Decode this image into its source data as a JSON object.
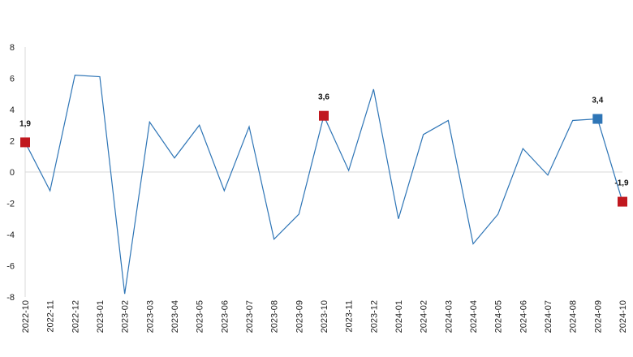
{
  "chart_data": {
    "type": "line",
    "title": "",
    "xlabel": "",
    "ylabel": "",
    "ylim": [
      -8,
      8
    ],
    "yticks": [
      8,
      6,
      4,
      2,
      0,
      -2,
      -4,
      -6,
      -8
    ],
    "grid": false,
    "categories": [
      "2022-10",
      "2022-11",
      "2022-12",
      "2023-01",
      "2023-02",
      "2023-03",
      "2023-04",
      "2023-05",
      "2023-06",
      "2023-07",
      "2023-08",
      "2023-09",
      "2023-10",
      "2023-11",
      "2023-12",
      "2024-01",
      "2024-02",
      "2024-03",
      "2024-04",
      "2024-05",
      "2024-06",
      "2024-07",
      "2024-08",
      "2024-09",
      "2024-10"
    ],
    "series": [
      {
        "color": "#2e75b6",
        "values": [
          1.9,
          -1.2,
          6.2,
          6.1,
          -7.8,
          3.2,
          0.9,
          3.0,
          -1.2,
          2.9,
          -4.3,
          -2.7,
          3.6,
          0.1,
          5.3,
          -3.0,
          2.4,
          3.3,
          -4.6,
          -2.7,
          1.5,
          -0.2,
          3.3,
          3.4,
          -1.9
        ]
      }
    ],
    "highlights": [
      {
        "index": 0,
        "label": "1,9",
        "color": "#c0181f"
      },
      {
        "index": 12,
        "label": "3,6",
        "color": "#c0181f"
      },
      {
        "index": 23,
        "label": "3,4",
        "color": "#2e75b6"
      },
      {
        "index": 24,
        "label": "-1,9",
        "color": "#c0181f"
      }
    ]
  }
}
